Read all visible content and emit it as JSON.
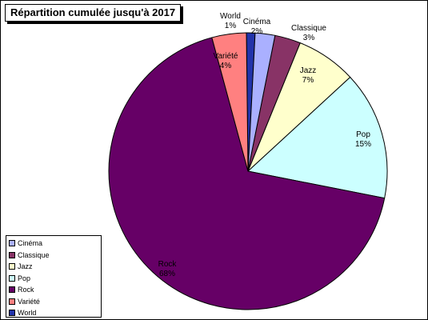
{
  "chart_data": {
    "type": "pie",
    "title": "Répartition cumulée jusqu'à 2017",
    "slices": [
      {
        "name": "World",
        "pct_label": "1%",
        "value": 1,
        "color": "#2233aa"
      },
      {
        "name": "Cinéma",
        "pct_label": "2%",
        "value": 2.3,
        "color": "#aab0ff"
      },
      {
        "name": "Classique",
        "pct_label": "3%",
        "value": 3,
        "color": "#883366"
      },
      {
        "name": "Jazz",
        "pct_label": "7%",
        "value": 7,
        "color": "#ffffcc"
      },
      {
        "name": "Pop",
        "pct_label": "15%",
        "value": 15,
        "color": "#ccffff"
      },
      {
        "name": "Rock",
        "pct_label": "68%",
        "value": 67.7,
        "color": "#660066"
      },
      {
        "name": "Variété",
        "pct_label": "4%",
        "value": 4,
        "color": "#ff8080"
      }
    ],
    "legend": {
      "placement": "bottom-left",
      "entries": [
        "Cinéma",
        "Classique",
        "Jazz",
        "Pop",
        "Rock",
        "Variété",
        "World"
      ]
    }
  }
}
